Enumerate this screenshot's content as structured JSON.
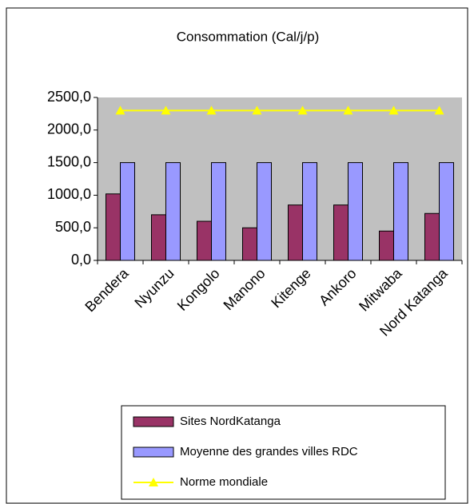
{
  "chart_data": {
    "type": "bar",
    "title": "Consommation (Cal/j/p)",
    "categories": [
      "Bendera",
      "Nyunzu",
      "Kongolo",
      "Manono",
      "Kitenge",
      "Ankoro",
      "Mitwaba",
      "Nord Katanga"
    ],
    "series": [
      {
        "name": "Sites NordKatanga",
        "color": "#993366",
        "values": [
          1020,
          700,
          600,
          500,
          850,
          850,
          450,
          720
        ]
      },
      {
        "name": "Moyenne des grandes villes RDC",
        "color": "#9999ff",
        "values": [
          1500,
          1500,
          1500,
          1500,
          1500,
          1500,
          1500,
          1500
        ]
      },
      {
        "name": "Norme mondiale",
        "type": "line",
        "color": "#ffff00",
        "values": [
          2300,
          2300,
          2300,
          2300,
          2300,
          2300,
          2300,
          2300
        ]
      }
    ],
    "ylim": [
      0,
      2500
    ],
    "yticks": [
      {
        "value": 0,
        "label": "0,0"
      },
      {
        "value": 500,
        "label": "500,0"
      },
      {
        "value": 1000,
        "label": "1000,0"
      },
      {
        "value": 1500,
        "label": "1500,0"
      },
      {
        "value": 2000,
        "label": "2000,0"
      },
      {
        "value": 2500,
        "label": "2500,0"
      }
    ],
    "grid": false
  }
}
